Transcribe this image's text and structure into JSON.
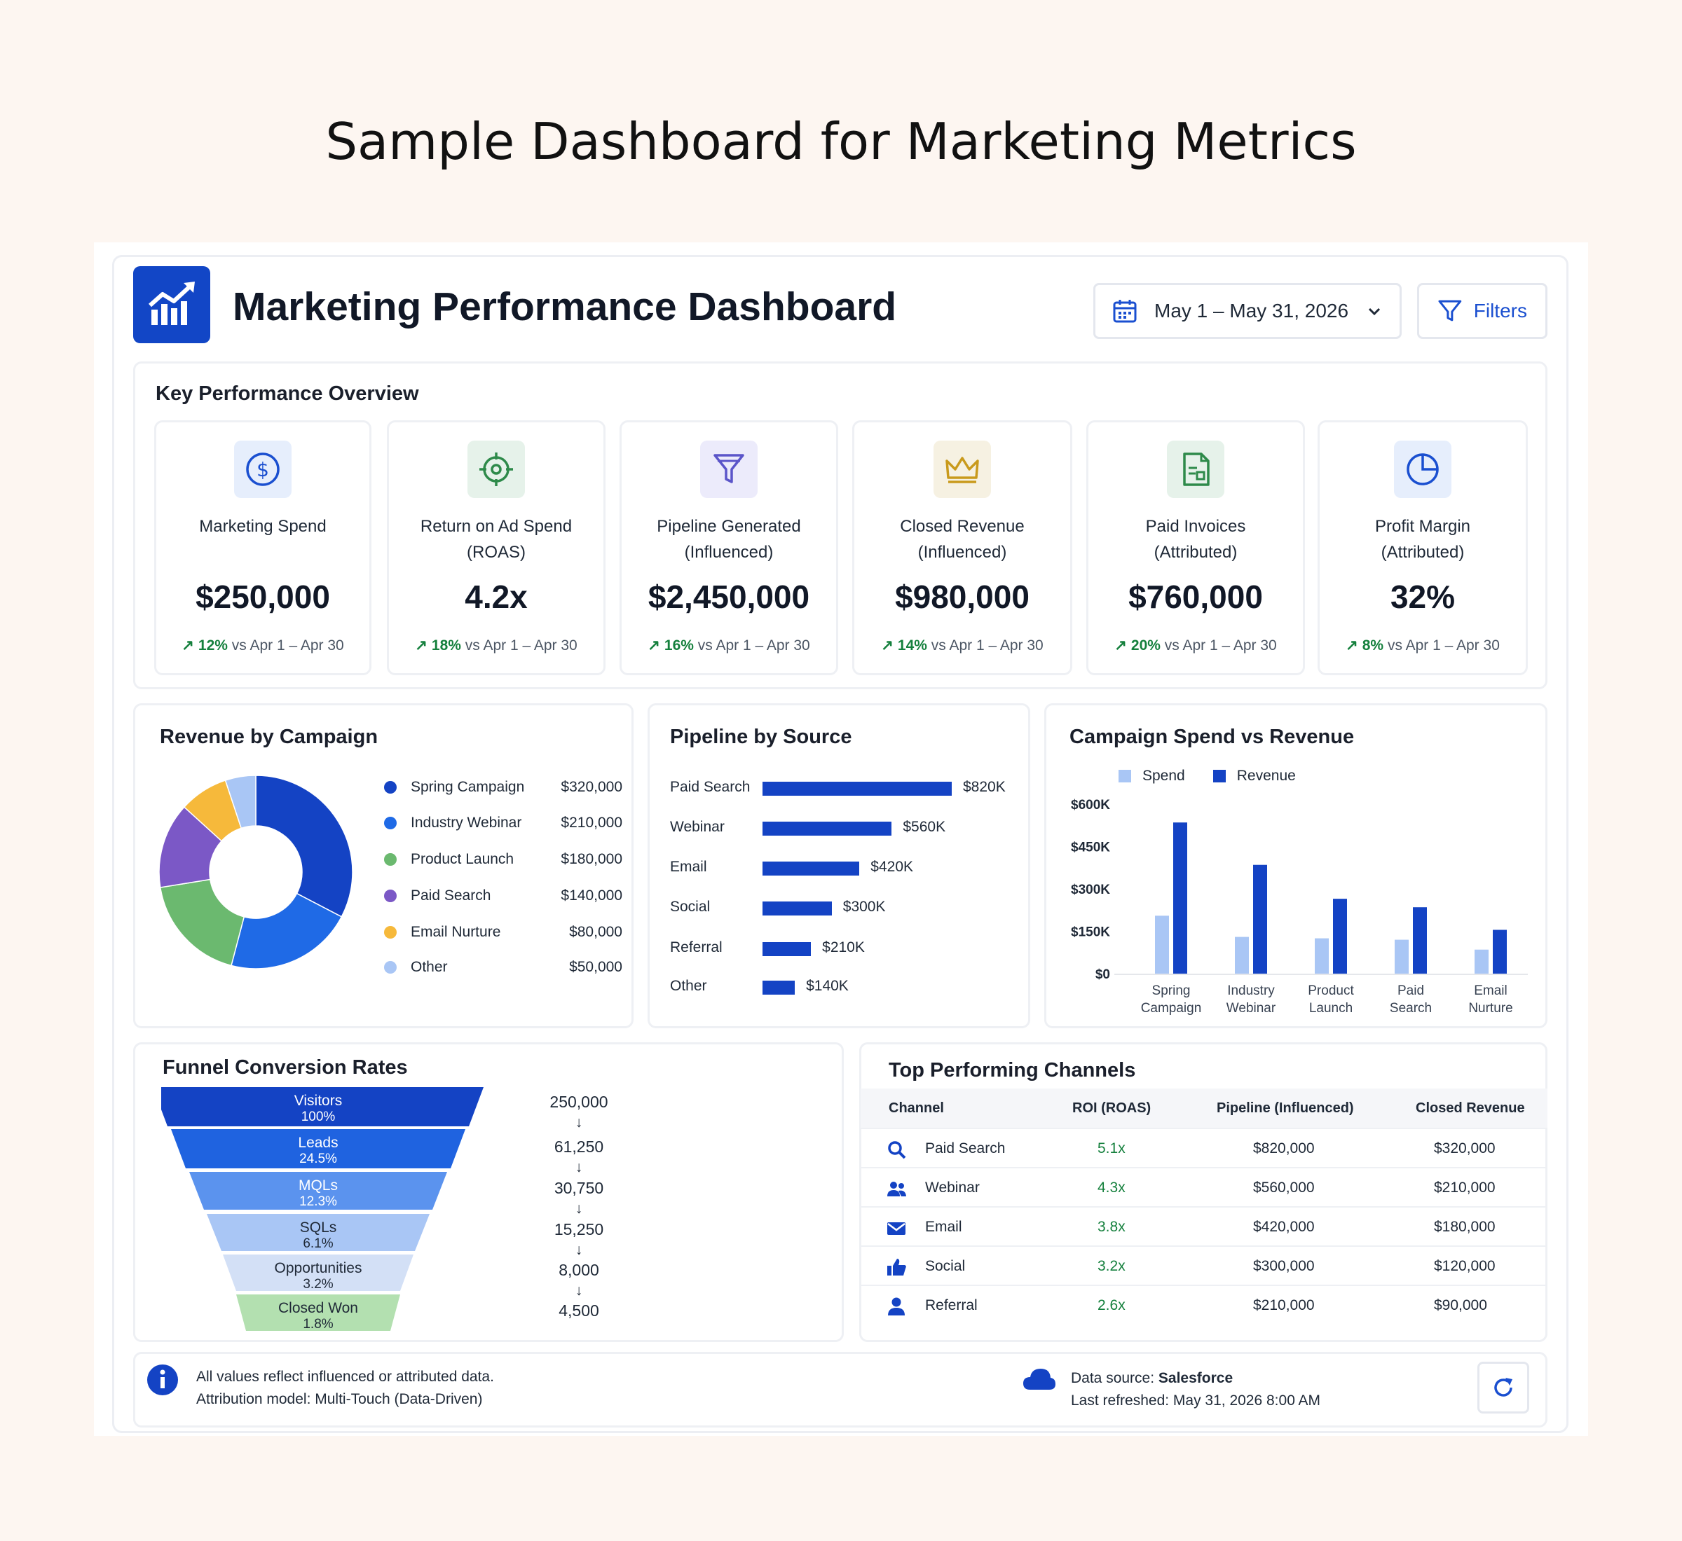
{
  "page_title": "Sample Dashboard for Marketing Metrics",
  "header": {
    "title": "Marketing Performance Dashboard",
    "date_range": "May 1 – May 31, 2026",
    "filters_label": "Filters"
  },
  "kpi_section": {
    "title": "Key Performance Overview",
    "items": [
      {
        "label1": "Marketing Spend",
        "label2": "",
        "value": "$250,000",
        "delta_pct": "12%",
        "delta_text": "vs Apr 1 – Apr 30",
        "icon": "dollar-icon"
      },
      {
        "label1": "Return on Ad Spend",
        "label2": "(ROAS)",
        "value": "4.2x",
        "delta_pct": "18%",
        "delta_text": "vs Apr 1 – Apr 30",
        "icon": "target-icon"
      },
      {
        "label1": "Pipeline Generated",
        "label2": "(Influenced)",
        "value": "$2,450,000",
        "delta_pct": "16%",
        "delta_text": "vs Apr 1 – Apr 30",
        "icon": "funnel-icon"
      },
      {
        "label1": "Closed Revenue",
        "label2": "(Influenced)",
        "value": "$980,000",
        "delta_pct": "14%",
        "delta_text": "vs Apr 1 – Apr 30",
        "icon": "crown-icon"
      },
      {
        "label1": "Paid Invoices",
        "label2": "(Attributed)",
        "value": "$760,000",
        "delta_pct": "20%",
        "delta_text": "vs Apr 1 – Apr 30",
        "icon": "invoice-icon"
      },
      {
        "label1": "Profit Margin",
        "label2": "(Attributed)",
        "value": "32%",
        "delta_pct": "8%",
        "delta_text": "vs Apr 1 – Apr 30",
        "icon": "pie-icon"
      }
    ]
  },
  "revenue_by_campaign": {
    "title": "Revenue by Campaign",
    "items": [
      {
        "name": "Spring Campaign",
        "value": "$320,000",
        "color": "#1443c4"
      },
      {
        "name": "Industry Webinar",
        "value": "$210,000",
        "color": "#1f6ae6"
      },
      {
        "name": "Product Launch",
        "value": "$180,000",
        "color": "#6bb96f"
      },
      {
        "name": "Paid Search",
        "value": "$140,000",
        "color": "#7b58c6"
      },
      {
        "name": "Email Nurture",
        "value": "$80,000",
        "color": "#f6b93b"
      },
      {
        "name": "Other",
        "value": "$50,000",
        "color": "#a9c6f5"
      }
    ]
  },
  "pipeline_by_source": {
    "title": "Pipeline by Source",
    "items": [
      {
        "name": "Paid Search",
        "label": "$820K",
        "value": 820
      },
      {
        "name": "Webinar",
        "label": "$560K",
        "value": 560
      },
      {
        "name": "Email",
        "label": "$420K",
        "value": 420
      },
      {
        "name": "Social",
        "label": "$300K",
        "value": 300
      },
      {
        "name": "Referral",
        "label": "$210K",
        "value": 210
      },
      {
        "name": "Other",
        "label": "$140K",
        "value": 140
      }
    ]
  },
  "chart_data": {
    "type": "bar",
    "title": "Campaign Spend vs Revenue",
    "categories": [
      [
        "Spring",
        "Campaign"
      ],
      [
        "Industry",
        "Webinar"
      ],
      [
        "Product",
        "Launch"
      ],
      [
        "Paid",
        "Search"
      ],
      [
        "Email",
        "Nurture"
      ]
    ],
    "series": [
      {
        "name": "Spend",
        "values": [
          205000,
          130000,
          125000,
          120000,
          85000
        ],
        "color": "#a9c6f5"
      },
      {
        "name": "Revenue",
        "values": [
          535000,
          385000,
          265000,
          235000,
          155000
        ],
        "color": "#1443c4"
      }
    ],
    "yticks": [
      "$600K",
      "$450K",
      "$300K",
      "$150K",
      "$0"
    ],
    "ylim": [
      0,
      600000
    ],
    "legend": "top-left",
    "grid": false
  },
  "funnel": {
    "title": "Funnel Conversion Rates",
    "stages": [
      {
        "name": "Visitors",
        "pct": "100%",
        "count": "250,000",
        "color": "#1443c4",
        "text": "#ffffff"
      },
      {
        "name": "Leads",
        "pct": "24.5%",
        "count": "61,250",
        "color": "#1f63e0",
        "text": "#ffffff"
      },
      {
        "name": "MQLs",
        "pct": "12.3%",
        "count": "30,750",
        "color": "#5b93ee",
        "text": "#ffffff"
      },
      {
        "name": "SQLs",
        "pct": "6.1%",
        "count": "15,250",
        "color": "#a9c6f5",
        "text": "#1f2937"
      },
      {
        "name": "Opportunities",
        "pct": "3.2%",
        "count": "8,000",
        "color": "#d3e0f6",
        "text": "#1f2937"
      },
      {
        "name": "Closed Won",
        "pct": "1.8%",
        "count": "4,500",
        "color": "#b3e0b0",
        "text": "#1f2937"
      }
    ],
    "arrow": "↓"
  },
  "channels": {
    "title": "Top Performing Channels",
    "headers": [
      "Channel",
      "ROI (ROAS)",
      "Pipeline (Influenced)",
      "Closed Revenue"
    ],
    "rows": [
      {
        "channel": "Paid Search",
        "roi": "5.1x",
        "pipeline": "$820,000",
        "revenue": "$320,000",
        "icon": "search-icon"
      },
      {
        "channel": "Webinar",
        "roi": "4.3x",
        "pipeline": "$560,000",
        "revenue": "$210,000",
        "icon": "people-icon"
      },
      {
        "channel": "Email",
        "roi": "3.8x",
        "pipeline": "$420,000",
        "revenue": "$180,000",
        "icon": "envelope-icon"
      },
      {
        "channel": "Social",
        "roi": "3.2x",
        "pipeline": "$300,000",
        "revenue": "$120,000",
        "icon": "thumbs-up-icon"
      },
      {
        "channel": "Referral",
        "roi": "2.6x",
        "pipeline": "$210,000",
        "revenue": "$90,000",
        "icon": "person-icon"
      }
    ]
  },
  "footer": {
    "note1": "All values reflect influenced or attributed data.",
    "note2": "Attribution model: Multi-Touch (Data-Driven)",
    "source_label": "Data source:",
    "source_value": "Salesforce",
    "refreshed": "Last refreshed: May 31, 2026 8:00 AM"
  }
}
